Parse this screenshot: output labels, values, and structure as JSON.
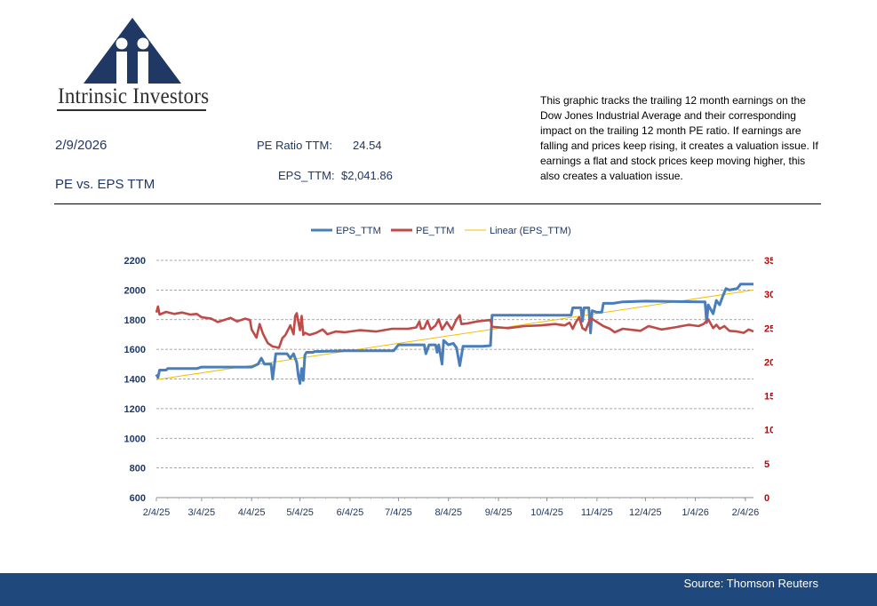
{
  "header": {
    "logo_text": "Intrinsic Investors",
    "date": "2/9/2026",
    "subtitle": "PE vs. EPS TTM",
    "pe_label": "PE Ratio TTM:",
    "pe_value": "24.54",
    "eps_label": "EPS_TTM:",
    "eps_value": "$2,041.86",
    "description": "This graphic tracks the trailing 12 month earnings on the Dow Jones Industrial Average and their corresponding impact on the trailing 12 month PE ratio.  If earnings are falling and prices keep rising, it creates a valuation issue.  If earnings a flat and stock prices keep moving higher, this also creates a valuation issue."
  },
  "footer": {
    "source": "Source: Thomson Reuters"
  },
  "colors": {
    "eps": "#4a7ebb",
    "pe": "#be4b48",
    "linear": "#f2c000",
    "axis_text": "#1f3864",
    "axis_right_text": "#c00000",
    "footer_bg": "#1f497d"
  },
  "chart_data": {
    "type": "line",
    "x_tick_labels": [
      "2/4/25",
      "3/4/25",
      "4/4/25",
      "5/4/25",
      "6/4/25",
      "7/4/25",
      "8/4/25",
      "9/4/25",
      "10/4/25",
      "11/4/25",
      "12/4/25",
      "1/4/26",
      "2/4/26"
    ],
    "xlim": [
      "2025-02-04",
      "2026-02-09"
    ],
    "y_left": {
      "ylim": [
        600,
        2200
      ],
      "ticks": [
        "600",
        "800",
        "1000",
        "1200",
        "1400",
        "1600",
        "1800",
        "2000",
        "2200"
      ]
    },
    "y_right": {
      "ylim": [
        0,
        35
      ],
      "ticks": [
        "0",
        "5",
        "10",
        "15",
        "20",
        "25",
        "30",
        "35"
      ]
    },
    "legend": {
      "position": "top",
      "entries": [
        "EPS_TTM",
        "PE_TTM",
        "Linear (EPS_TTM)"
      ]
    },
    "grid": "horizontal dashed",
    "series": [
      {
        "name": "EPS_TTM",
        "axis": "left",
        "points": [
          [
            "2025-02-04",
            1430
          ],
          [
            "2025-02-05",
            1410
          ],
          [
            "2025-02-06",
            1460
          ],
          [
            "2025-02-10",
            1460
          ],
          [
            "2025-02-11",
            1470
          ],
          [
            "2025-03-01",
            1470
          ],
          [
            "2025-03-04",
            1480
          ],
          [
            "2025-04-04",
            1480
          ],
          [
            "2025-04-08",
            1500
          ],
          [
            "2025-04-10",
            1540
          ],
          [
            "2025-04-12",
            1500
          ],
          [
            "2025-04-16",
            1500
          ],
          [
            "2025-04-17",
            1400
          ],
          [
            "2025-04-19",
            1570
          ],
          [
            "2025-04-26",
            1570
          ],
          [
            "2025-04-28",
            1540
          ],
          [
            "2025-04-30",
            1570
          ],
          [
            "2025-05-02",
            1510
          ],
          [
            "2025-05-03",
            1420
          ],
          [
            "2025-05-04",
            1370
          ],
          [
            "2025-05-05",
            1470
          ],
          [
            "2025-05-06",
            1390
          ],
          [
            "2025-05-07",
            1560
          ],
          [
            "2025-05-08",
            1580
          ],
          [
            "2025-05-12",
            1580
          ],
          [
            "2025-05-13",
            1585
          ],
          [
            "2025-06-01",
            1590
          ],
          [
            "2025-07-01",
            1590
          ],
          [
            "2025-07-04",
            1630
          ],
          [
            "2025-07-20",
            1630
          ],
          [
            "2025-07-21",
            1570
          ],
          [
            "2025-07-23",
            1630
          ],
          [
            "2025-07-27",
            1630
          ],
          [
            "2025-07-28",
            1580
          ],
          [
            "2025-07-29",
            1630
          ],
          [
            "2025-07-31",
            1500
          ],
          [
            "2025-08-01",
            1660
          ],
          [
            "2025-08-04",
            1630
          ],
          [
            "2025-08-07",
            1640
          ],
          [
            "2025-08-09",
            1610
          ],
          [
            "2025-08-11",
            1490
          ],
          [
            "2025-08-13",
            1620
          ],
          [
            "2025-08-25",
            1620
          ],
          [
            "2025-08-30",
            1625
          ],
          [
            "2025-08-31",
            1830
          ],
          [
            "2025-10-19",
            1830
          ],
          [
            "2025-10-20",
            1880
          ],
          [
            "2025-10-25",
            1880
          ],
          [
            "2025-10-26",
            1790
          ],
          [
            "2025-10-27",
            1880
          ],
          [
            "2025-10-30",
            1880
          ],
          [
            "2025-10-31",
            1710
          ],
          [
            "2025-11-01",
            1860
          ],
          [
            "2025-11-04",
            1850
          ],
          [
            "2025-11-07",
            1850
          ],
          [
            "2025-11-08",
            1910
          ],
          [
            "2025-11-14",
            1910
          ],
          [
            "2025-11-20",
            1920
          ],
          [
            "2025-12-04",
            1925
          ],
          [
            "2026-01-08",
            1920
          ],
          [
            "2026-01-10",
            1920
          ],
          [
            "2026-01-11",
            1780
          ],
          [
            "2026-01-12",
            1900
          ],
          [
            "2026-01-15",
            1840
          ],
          [
            "2026-01-17",
            1930
          ],
          [
            "2026-01-19",
            1900
          ],
          [
            "2026-01-21",
            1960
          ],
          [
            "2026-01-23",
            2010
          ],
          [
            "2026-01-25",
            2000
          ],
          [
            "2026-01-30",
            2010
          ],
          [
            "2026-02-01",
            2040
          ],
          [
            "2026-02-09",
            2040
          ]
        ]
      },
      {
        "name": "PE_TTM",
        "axis": "right",
        "points": [
          [
            "2025-02-04",
            27.3
          ],
          [
            "2025-02-05",
            28.2
          ],
          [
            "2025-02-06",
            27.0
          ],
          [
            "2025-02-10",
            27.4
          ],
          [
            "2025-02-15",
            27.1
          ],
          [
            "2025-02-20",
            27.3
          ],
          [
            "2025-02-25",
            27.0
          ],
          [
            "2025-03-01",
            27.1
          ],
          [
            "2025-03-04",
            26.6
          ],
          [
            "2025-03-10",
            26.4
          ],
          [
            "2025-03-14",
            25.9
          ],
          [
            "2025-03-18",
            26.2
          ],
          [
            "2025-03-22",
            26.5
          ],
          [
            "2025-03-26",
            26.0
          ],
          [
            "2025-03-31",
            26.4
          ],
          [
            "2025-04-03",
            26.2
          ],
          [
            "2025-04-04",
            24.8
          ],
          [
            "2025-04-07",
            23.6
          ],
          [
            "2025-04-09",
            25.6
          ],
          [
            "2025-04-11",
            24.2
          ],
          [
            "2025-04-14",
            22.8
          ],
          [
            "2025-04-17",
            22.3
          ],
          [
            "2025-04-21",
            22.1
          ],
          [
            "2025-04-23",
            23.5
          ],
          [
            "2025-04-25",
            24.0
          ],
          [
            "2025-04-28",
            25.4
          ],
          [
            "2025-04-30",
            24.1
          ],
          [
            "2025-05-01",
            26.8
          ],
          [
            "2025-05-02",
            27.2
          ],
          [
            "2025-05-03",
            25.9
          ],
          [
            "2025-05-04",
            24.7
          ],
          [
            "2025-05-05",
            26.8
          ],
          [
            "2025-05-06",
            24.0
          ],
          [
            "2025-05-07",
            24.3
          ],
          [
            "2025-05-10",
            24.0
          ],
          [
            "2025-05-14",
            24.3
          ],
          [
            "2025-05-18",
            24.8
          ],
          [
            "2025-05-21",
            24.1
          ],
          [
            "2025-05-26",
            24.5
          ],
          [
            "2025-06-01",
            24.4
          ],
          [
            "2025-06-10",
            24.7
          ],
          [
            "2025-06-20",
            24.5
          ],
          [
            "2025-06-30",
            24.9
          ],
          [
            "2025-07-10",
            24.9
          ],
          [
            "2025-07-15",
            25.1
          ],
          [
            "2025-07-17",
            26.0
          ],
          [
            "2025-07-18",
            24.9
          ],
          [
            "2025-07-20",
            25.0
          ],
          [
            "2025-07-22",
            26.1
          ],
          [
            "2025-07-24",
            24.8
          ],
          [
            "2025-07-27",
            25.4
          ],
          [
            "2025-07-29",
            26.3
          ],
          [
            "2025-07-31",
            24.8
          ],
          [
            "2025-08-03",
            25.9
          ],
          [
            "2025-08-06",
            24.8
          ],
          [
            "2025-08-09",
            26.3
          ],
          [
            "2025-08-11",
            26.9
          ],
          [
            "2025-08-12",
            25.6
          ],
          [
            "2025-08-16",
            25.7
          ],
          [
            "2025-08-22",
            26.0
          ],
          [
            "2025-08-30",
            26.2
          ],
          [
            "2025-08-31",
            25.2
          ],
          [
            "2025-09-10",
            25.0
          ],
          [
            "2025-09-20",
            25.3
          ],
          [
            "2025-09-30",
            25.4
          ],
          [
            "2025-10-09",
            25.6
          ],
          [
            "2025-10-15",
            25.4
          ],
          [
            "2025-10-18",
            25.8
          ],
          [
            "2025-10-20",
            24.9
          ],
          [
            "2025-10-22",
            25.9
          ],
          [
            "2025-10-24",
            26.6
          ],
          [
            "2025-10-26",
            25.0
          ],
          [
            "2025-10-28",
            24.7
          ],
          [
            "2025-10-31",
            26.5
          ],
          [
            "2025-11-04",
            25.9
          ],
          [
            "2025-11-08",
            25.3
          ],
          [
            "2025-11-12",
            24.9
          ],
          [
            "2025-11-15",
            24.4
          ],
          [
            "2025-11-20",
            24.9
          ],
          [
            "2025-12-01",
            24.6
          ],
          [
            "2025-12-06",
            25.3
          ],
          [
            "2025-12-14",
            24.8
          ],
          [
            "2025-12-22",
            25.1
          ],
          [
            "2025-12-31",
            25.5
          ],
          [
            "2026-01-06",
            25.3
          ],
          [
            "2026-01-09",
            25.6
          ],
          [
            "2026-01-12",
            26.3
          ],
          [
            "2026-01-15",
            25.0
          ],
          [
            "2026-01-17",
            25.5
          ],
          [
            "2026-01-19",
            24.9
          ],
          [
            "2026-01-22",
            25.3
          ],
          [
            "2026-01-25",
            24.6
          ],
          [
            "2026-01-30",
            24.5
          ],
          [
            "2026-02-03",
            24.3
          ],
          [
            "2026-02-06",
            24.8
          ],
          [
            "2026-02-09",
            24.5
          ]
        ]
      },
      {
        "name": "Linear (EPS_TTM)",
        "axis": "left",
        "trendline": true,
        "points": [
          [
            "2025-02-04",
            1395
          ],
          [
            "2026-02-09",
            2000
          ]
        ]
      }
    ]
  }
}
